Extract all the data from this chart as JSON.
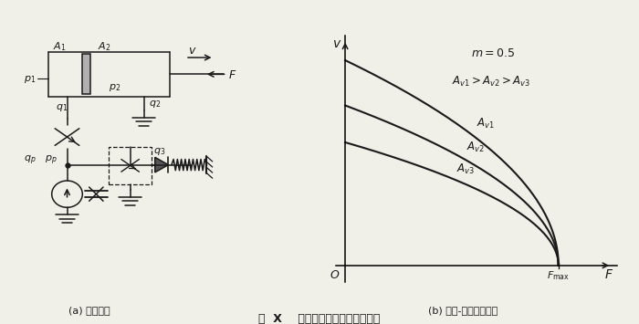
{
  "title": "图  X    节流阀的进口节流调速回路",
  "subtitle_a": "(a) 调速回路",
  "subtitle_b": "(b) 速度-负载特性曲线",
  "curve_scales": [
    1.0,
    0.78,
    0.6
  ],
  "bg_color": "#f0efe8",
  "line_color": "#1a1a1a",
  "fmax": 0.88
}
